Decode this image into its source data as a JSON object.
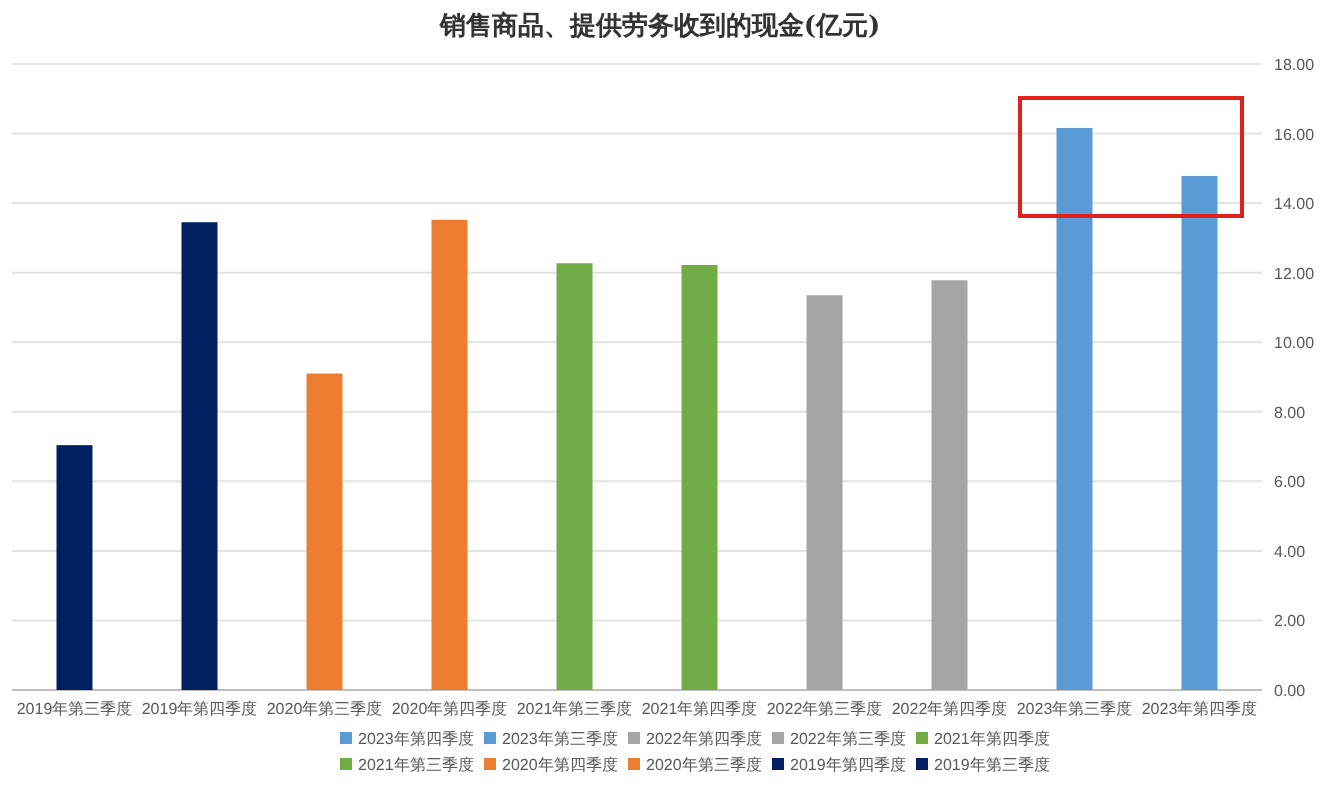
{
  "chart_data": {
    "type": "bar",
    "title": "销售商品、提供劳务收到的现金(亿元)",
    "categories": [
      "2019年第三季度",
      "2019年第四季度",
      "2020年第三季度",
      "2020年第四季度",
      "2021年第三季度",
      "2021年第四季度",
      "2022年第三季度",
      "2022年第四季度",
      "2023年第三季度",
      "2023年第四季度"
    ],
    "series": [
      {
        "name": "2023年第四季度",
        "color": "#5b9bd5",
        "values": [
          null,
          null,
          null,
          null,
          null,
          null,
          null,
          null,
          null,
          14.78
        ]
      },
      {
        "name": "2023年第三季度",
        "color": "#5b9bd5",
        "values": [
          null,
          null,
          null,
          null,
          null,
          null,
          null,
          null,
          16.16,
          null
        ]
      },
      {
        "name": "2022年第四季度",
        "color": "#a5a5a5",
        "values": [
          null,
          null,
          null,
          null,
          null,
          null,
          null,
          11.78,
          null,
          null
        ]
      },
      {
        "name": "2022年第三季度",
        "color": "#a5a5a5",
        "values": [
          null,
          null,
          null,
          null,
          null,
          null,
          11.35,
          null,
          null,
          null
        ]
      },
      {
        "name": "2021年第四季度",
        "color": "#70ad47",
        "values": [
          null,
          null,
          null,
          null,
          null,
          12.22,
          null,
          null,
          null,
          null
        ]
      },
      {
        "name": "2021年第三季度",
        "color": "#70ad47",
        "values": [
          null,
          null,
          null,
          null,
          12.27,
          null,
          null,
          null,
          null,
          null
        ]
      },
      {
        "name": "2020年第四季度",
        "color": "#ed7d31",
        "values": [
          null,
          null,
          null,
          13.52,
          null,
          null,
          null,
          null,
          null,
          null
        ]
      },
      {
        "name": "2020年第三季度",
        "color": "#ed7d31",
        "values": [
          null,
          null,
          9.1,
          null,
          null,
          null,
          null,
          null,
          null,
          null
        ]
      },
      {
        "name": "2019年第四季度",
        "color": "#002060",
        "values": [
          null,
          13.45,
          null,
          null,
          null,
          null,
          null,
          null,
          null,
          null
        ]
      },
      {
        "name": "2019年第三季度",
        "color": "#002060",
        "values": [
          7.04,
          null,
          null,
          null,
          null,
          null,
          null,
          null,
          null,
          null
        ]
      }
    ],
    "ylim": [
      0,
      18
    ],
    "yticks": [
      {
        "value": 0,
        "label": "0.00"
      },
      {
        "value": 2,
        "label": "2.00"
      },
      {
        "value": 4,
        "label": "4.00"
      },
      {
        "value": 6,
        "label": "6.00"
      },
      {
        "value": 8,
        "label": "8.00"
      },
      {
        "value": 10,
        "label": "10.00"
      },
      {
        "value": 12,
        "label": "12.00"
      },
      {
        "value": 14,
        "label": "14.00"
      },
      {
        "value": 16,
        "label": "16.00"
      },
      {
        "value": 18,
        "label": "18.00"
      }
    ],
    "grid": "y",
    "legend": "bottom"
  }
}
